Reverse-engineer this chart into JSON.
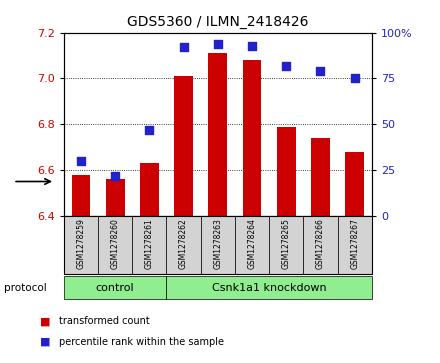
{
  "title": "GDS5360 / ILMN_2418426",
  "samples": [
    "GSM1278259",
    "GSM1278260",
    "GSM1278261",
    "GSM1278262",
    "GSM1278263",
    "GSM1278264",
    "GSM1278265",
    "GSM1278266",
    "GSM1278267"
  ],
  "bar_values": [
    6.58,
    6.56,
    6.63,
    7.01,
    7.11,
    7.08,
    6.79,
    6.74,
    6.68
  ],
  "percentile_values": [
    30,
    22,
    47,
    92,
    94,
    93,
    82,
    79,
    75
  ],
  "bar_color": "#cc0000",
  "dot_color": "#2222cc",
  "ylim_left": [
    6.4,
    7.2
  ],
  "ylim_right": [
    0,
    100
  ],
  "yticks_left": [
    6.4,
    6.6,
    6.8,
    7.0,
    7.2
  ],
  "yticks_right": [
    0,
    25,
    50,
    75,
    100
  ],
  "ytick_labels_right": [
    "0",
    "25",
    "50",
    "75",
    "100%"
  ],
  "control_label": "control",
  "knockdown_label": "Csnk1a1 knockdown",
  "control_count": 3,
  "protocol_label": "protocol",
  "legend_bar_label": "transformed count",
  "legend_dot_label": "percentile rank within the sample",
  "bar_width": 0.55,
  "plot_bg_color": "#ffffff",
  "grid_color": "#555555",
  "tick_label_color_left": "#cc0000",
  "tick_label_color_right": "#2222cc",
  "bar_bottom": 6.4,
  "dot_size": 30,
  "group_color": "#90ee90",
  "sample_box_color": "#d3d3d3"
}
